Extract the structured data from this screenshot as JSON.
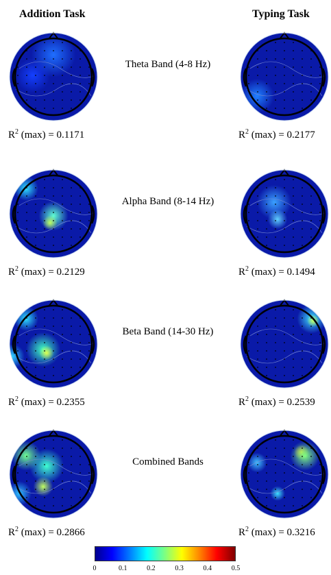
{
  "columns": {
    "left": "Addition Task",
    "right": "Typing Task"
  },
  "rows": [
    {
      "band": "Theta Band (4-8 Hz)",
      "left_r2": "0.1171",
      "right_r2": "0.2177"
    },
    {
      "band": "Alpha Band (8-14 Hz)",
      "left_r2": "0.2129",
      "right_r2": "0.1494"
    },
    {
      "band": "Beta Band (14-30 Hz)",
      "left_r2": "0.2355",
      "right_r2": "0.2539"
    },
    {
      "band": "Combined Bands",
      "left_r2": "0.2866",
      "right_r2": "0.3216"
    }
  ],
  "r2_prefix": "R",
  "r2_exp": "2",
  "r2_suffix": " (max) = ",
  "colorbar": {
    "ticks": [
      "0",
      "0.1",
      "0.2",
      "0.3",
      "0.4",
      "0.5"
    ]
  },
  "colors": {
    "background": "#0a1aa8",
    "outline": "#000000"
  }
}
